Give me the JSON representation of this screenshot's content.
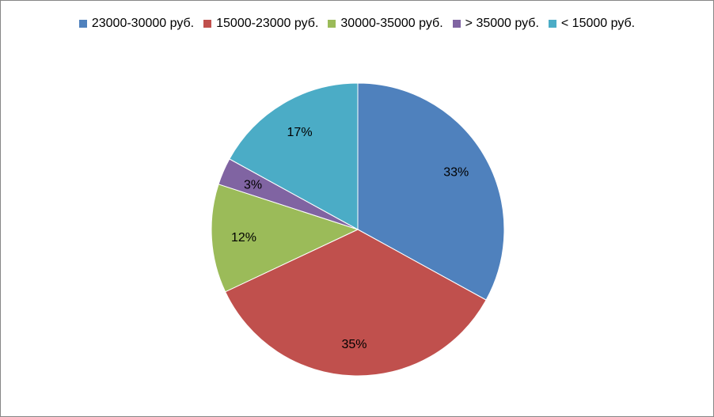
{
  "chart_data": {
    "type": "pie",
    "title": "",
    "legend_position": "top",
    "slices": [
      {
        "label": "23000-30000 руб.",
        "value": 33,
        "display": "33%",
        "color": "#4F81BD"
      },
      {
        "label": "15000-23000 руб.",
        "value": 35,
        "display": "35%",
        "color": "#C0504D"
      },
      {
        "label": "30000-35000 руб.",
        "value": 12,
        "display": "12%",
        "color": "#9BBB59"
      },
      {
        "label": "> 35000 руб.",
        "value": 3,
        "display": "3%",
        "color": "#8064A2"
      },
      {
        "label": "< 15000 руб.",
        "value": 17,
        "display": "17%",
        "color": "#4BACC6"
      }
    ]
  }
}
